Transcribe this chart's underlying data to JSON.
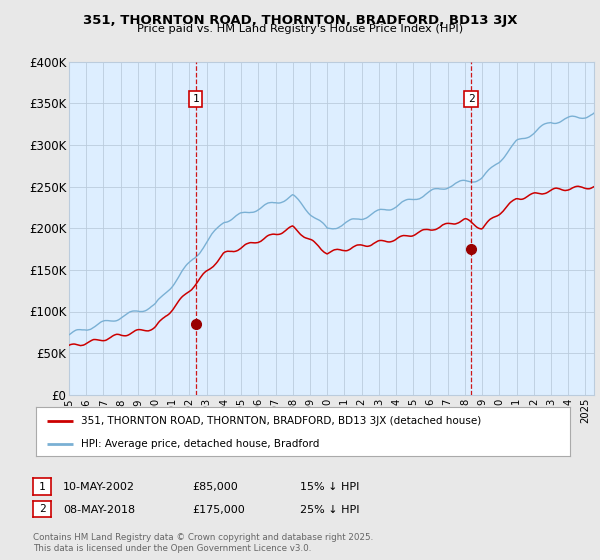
{
  "title": "351, THORNTON ROAD, THORNTON, BRADFORD, BD13 3JX",
  "subtitle": "Price paid vs. HM Land Registry's House Price Index (HPI)",
  "ylim": [
    0,
    400000
  ],
  "xlim_start": 1995.0,
  "xlim_end": 2025.5,
  "yticks": [
    0,
    50000,
    100000,
    150000,
    200000,
    250000,
    300000,
    350000,
    400000
  ],
  "ytick_labels": [
    "£0",
    "£50K",
    "£100K",
    "£150K",
    "£200K",
    "£250K",
    "£300K",
    "£350K",
    "£400K"
  ],
  "xticks": [
    1995,
    1996,
    1997,
    1998,
    1999,
    2000,
    2001,
    2002,
    2003,
    2004,
    2005,
    2006,
    2007,
    2008,
    2009,
    2010,
    2011,
    2012,
    2013,
    2014,
    2015,
    2016,
    2017,
    2018,
    2019,
    2020,
    2021,
    2022,
    2023,
    2024,
    2025
  ],
  "sale1_x": 2002.36,
  "sale1_y": 85000,
  "sale1_label": "1",
  "sale1_date": "10-MAY-2002",
  "sale1_price": "£85,000",
  "sale1_hpi": "15% ↓ HPI",
  "sale2_x": 2018.36,
  "sale2_y": 175000,
  "sale2_label": "2",
  "sale2_date": "08-MAY-2018",
  "sale2_price": "£175,000",
  "sale2_hpi": "25% ↓ HPI",
  "line_color_red": "#cc0000",
  "line_color_blue": "#7ab0d4",
  "marker_color_red": "#990000",
  "vline_color": "#cc0000",
  "background_color": "#e8e8e8",
  "plot_bg_color": "#ddeeff",
  "grid_color": "#bbccdd",
  "legend_label_red": "351, THORNTON ROAD, THORNTON, BRADFORD, BD13 3JX (detached house)",
  "legend_label_blue": "HPI: Average price, detached house, Bradford",
  "footer": "Contains HM Land Registry data © Crown copyright and database right 2025.\nThis data is licensed under the Open Government Licence v3.0."
}
